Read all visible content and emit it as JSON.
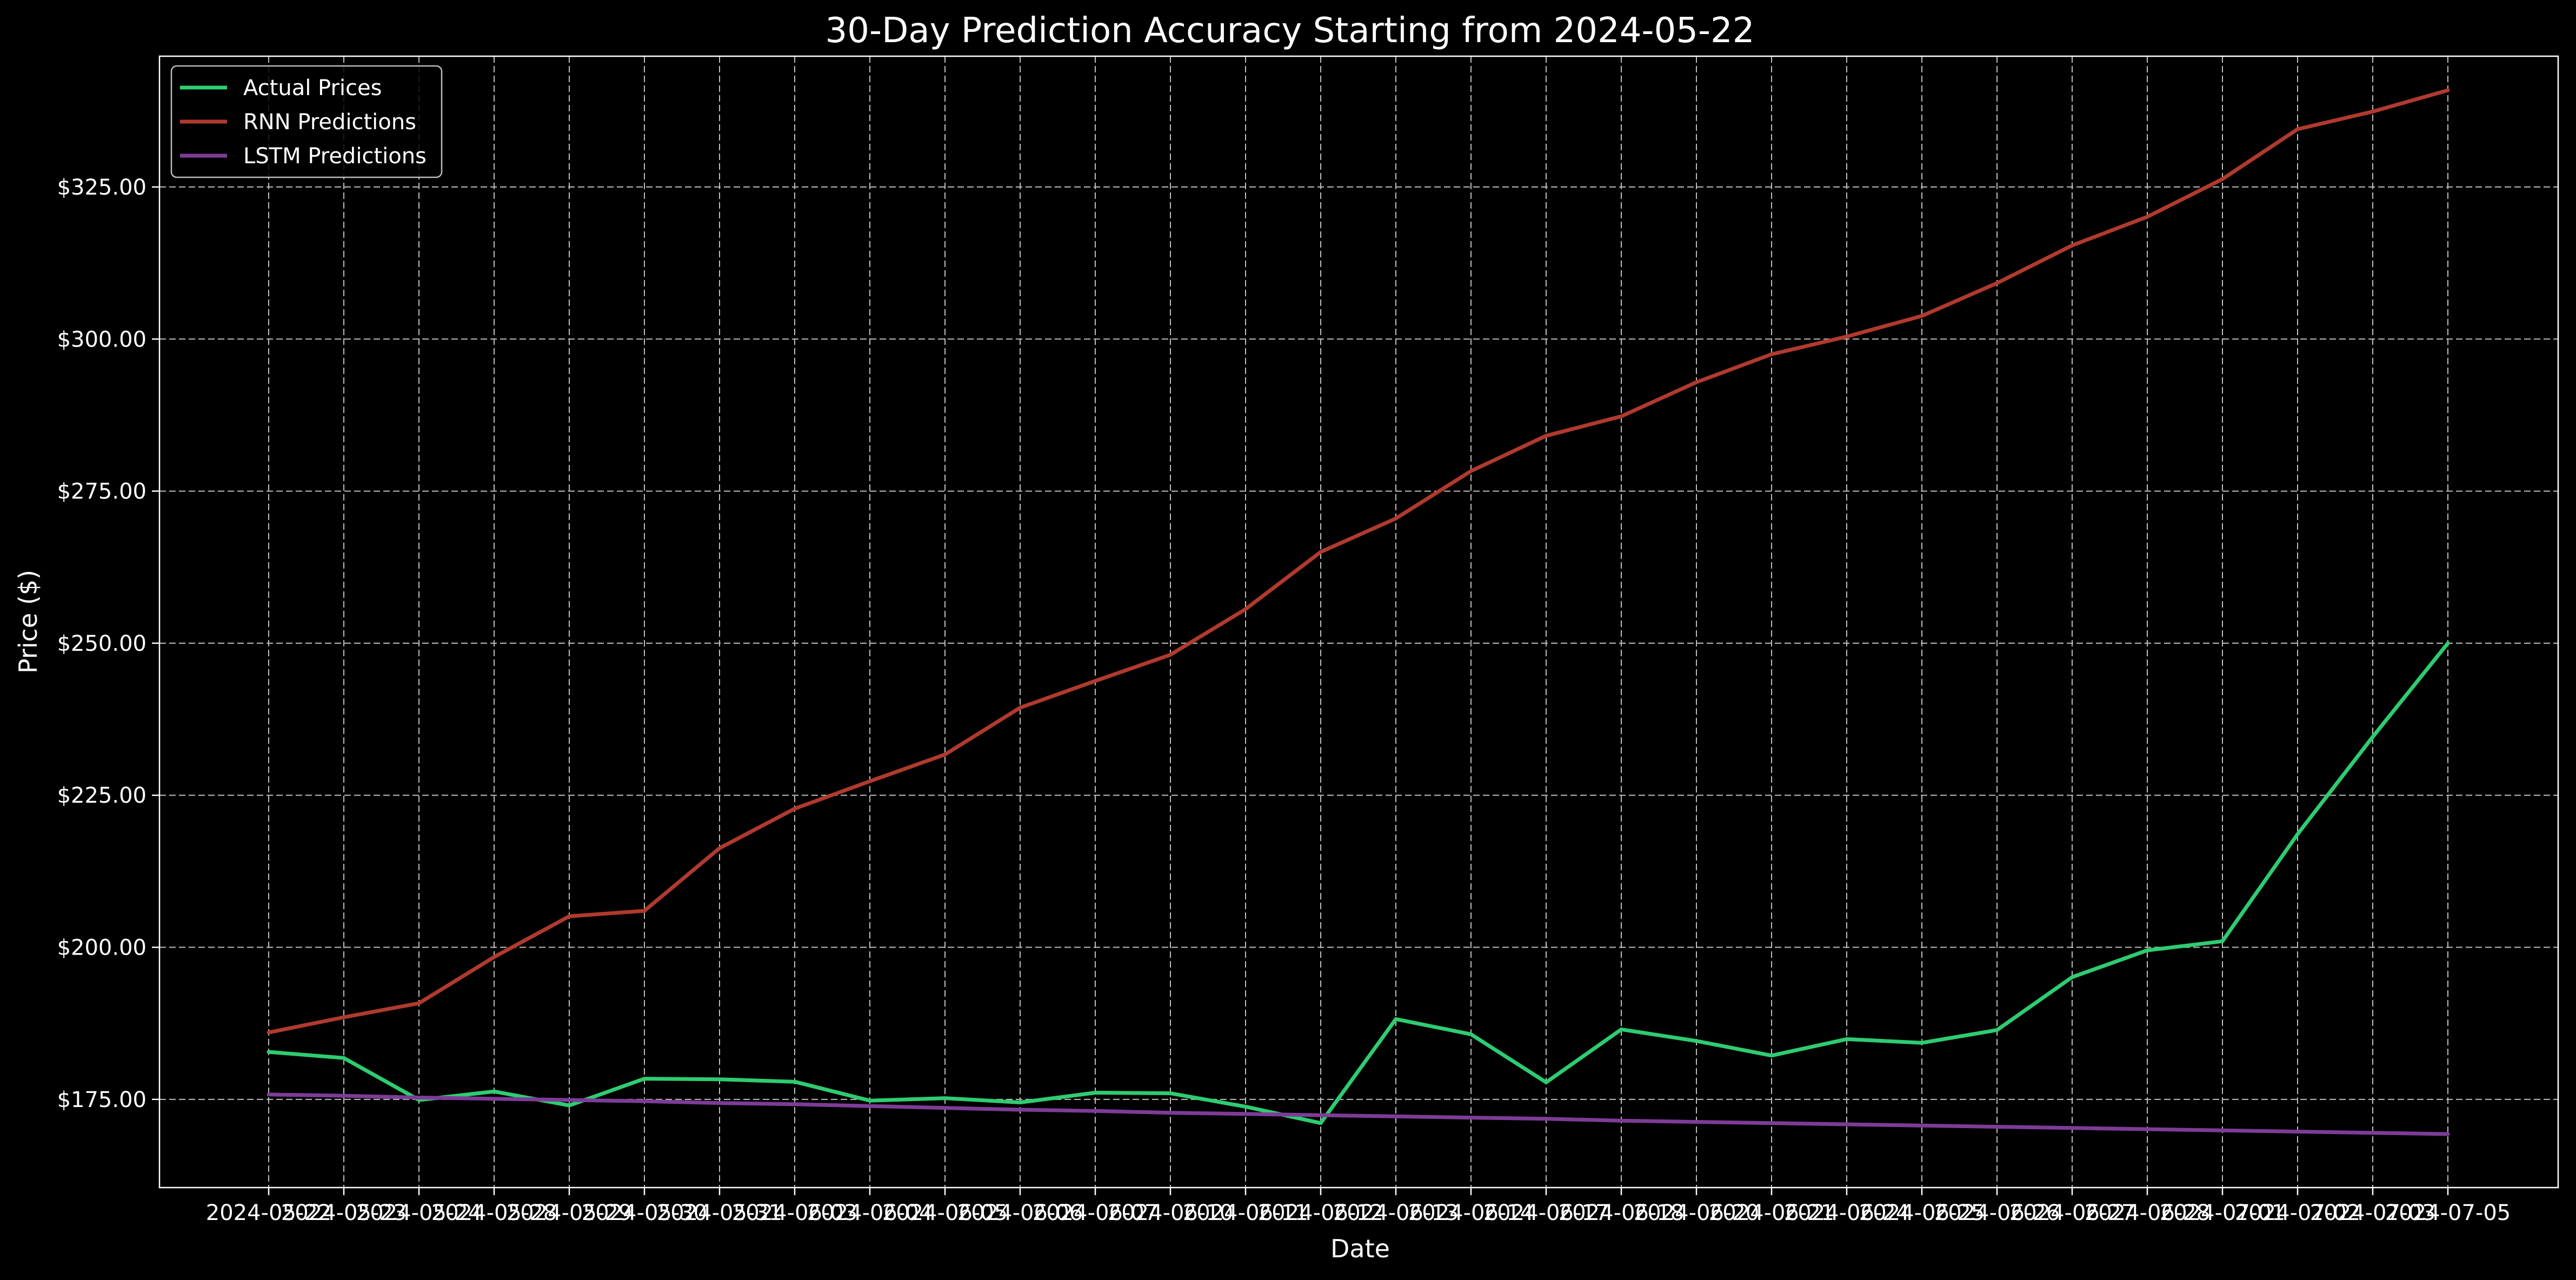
{
  "chart_data": {
    "type": "line",
    "title": "30-Day Prediction Accuracy Starting from 2024-05-22",
    "xlabel": "Date",
    "ylabel": "Price ($)",
    "ylim": [
      160.5,
      346.5
    ],
    "yticks": [
      "$175.00",
      "$200.00",
      "$225.00",
      "$250.00",
      "$275.00",
      "$300.00",
      "$325.00"
    ],
    "ytick_values": [
      175,
      200,
      225,
      250,
      275,
      300,
      325
    ],
    "grid": true,
    "legend_position": "top-left",
    "categories": [
      "2024-05-22",
      "2024-05-23",
      "2024-05-24",
      "2024-05-28",
      "2024-05-29",
      "2024-05-30",
      "2024-05-31",
      "2024-06-03",
      "2024-06-04",
      "2024-06-05",
      "2024-06-06",
      "2024-06-07",
      "2024-06-10",
      "2024-06-11",
      "2024-06-12",
      "2024-06-13",
      "2024-06-14",
      "2024-06-17",
      "2024-06-18",
      "2024-06-20",
      "2024-06-21",
      "2024-06-24",
      "2024-06-25",
      "2024-06-26",
      "2024-06-27",
      "2024-06-28",
      "2024-07-01",
      "2024-07-02",
      "2024-07-03",
      "2024-07-05"
    ],
    "series": [
      {
        "name": "Actual Prices",
        "color": "#2ecc71",
        "values": [
          182.8,
          181.8,
          174.9,
          176.3,
          174.0,
          178.4,
          178.3,
          177.9,
          174.8,
          175.2,
          174.5,
          176.1,
          176.0,
          173.8,
          171.1,
          188.2,
          185.7,
          177.8,
          186.5,
          184.6,
          182.2,
          184.9,
          184.3,
          186.4,
          195.1,
          199.5,
          201.0,
          218.6,
          234.6,
          250.0
        ]
      },
      {
        "name": "RNN Predictions",
        "color": "#b03a2e",
        "values": [
          186.0,
          188.5,
          190.8,
          198.4,
          205.1,
          206.0,
          216.3,
          222.8,
          227.3,
          231.7,
          239.4,
          243.8,
          248.1,
          255.6,
          265.0,
          270.5,
          278.3,
          284.1,
          287.3,
          292.9,
          297.5,
          300.4,
          303.8,
          309.2,
          315.4,
          320.1,
          326.3,
          334.5,
          337.4,
          340.9
        ]
      },
      {
        "name": "LSTM Predictions",
        "color": "#7d3c98",
        "values": [
          175.8,
          175.6,
          175.3,
          175.1,
          174.9,
          174.7,
          174.4,
          174.2,
          173.9,
          173.6,
          173.3,
          173.1,
          172.8,
          172.6,
          172.4,
          172.2,
          172.0,
          171.8,
          171.5,
          171.3,
          171.1,
          170.9,
          170.7,
          170.5,
          170.3,
          170.1,
          169.9,
          169.7,
          169.5,
          169.3
        ]
      }
    ]
  }
}
